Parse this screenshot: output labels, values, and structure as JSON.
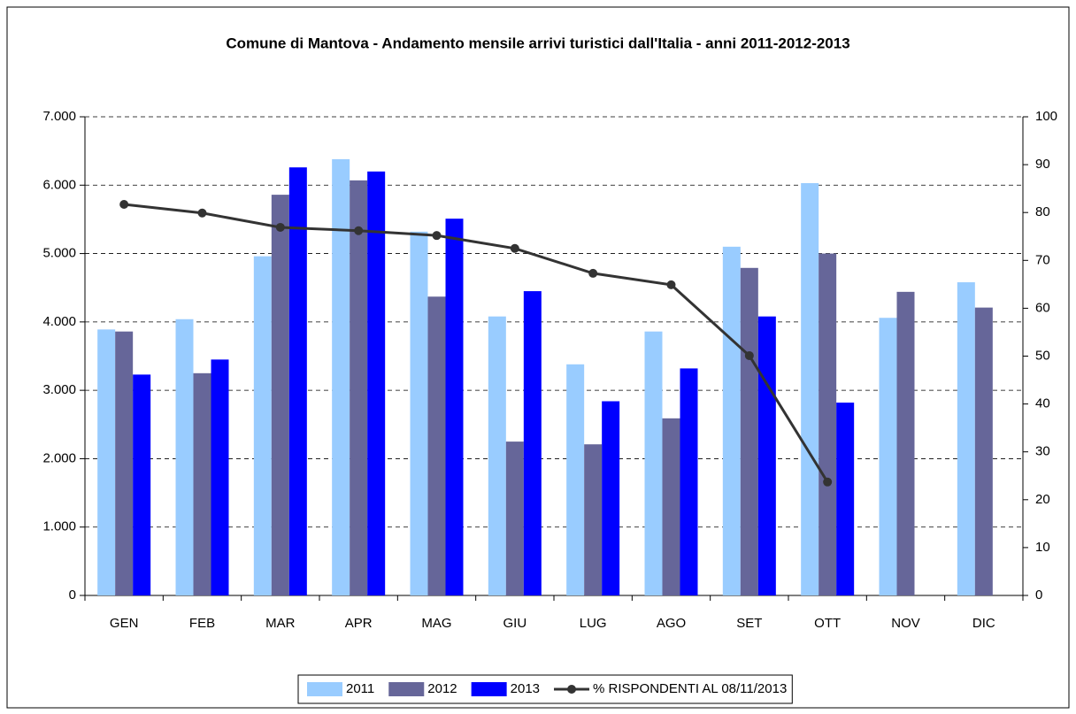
{
  "chart_data": {
    "type": "bar",
    "title": "Comune di Mantova - Andamento mensile arrivi turistici dall'Italia - anni 2011-2012-2013",
    "categories": [
      "GEN",
      "FEB",
      "MAR",
      "APR",
      "MAG",
      "GIU",
      "LUG",
      "AGO",
      "SET",
      "OTT",
      "NOV",
      "DIC"
    ],
    "series": [
      {
        "name": "2011",
        "color": "#99ccff",
        "values": [
          3890,
          4040,
          4960,
          6380,
          5320,
          4080,
          3380,
          3860,
          5100,
          6030,
          4060,
          4580
        ]
      },
      {
        "name": "2012",
        "color": "#666699",
        "values": [
          3860,
          3250,
          5860,
          6070,
          4370,
          2250,
          2210,
          2590,
          4790,
          5000,
          4440,
          4210
        ]
      },
      {
        "name": "2013",
        "color": "#0000ff",
        "values": [
          3230,
          3450,
          6260,
          6200,
          5510,
          4450,
          2840,
          3320,
          4080,
          2820,
          null,
          null
        ]
      },
      {
        "name": "% RISPONDENTI AL 08/11/2013",
        "color": "#333333",
        "type": "line",
        "axis": "y2",
        "values": [
          81.7,
          79.9,
          76.9,
          76.2,
          75.2,
          72.5,
          67.3,
          64.9,
          50.1,
          23.7,
          null,
          null
        ]
      }
    ],
    "ylim": [
      0,
      7000
    ],
    "yticks": [
      0,
      {
        "value": 1000,
        "label": "1.000"
      },
      {
        "value": 2000,
        "label": "2.000"
      },
      {
        "value": 3000,
        "label": "3.000"
      },
      {
        "value": 4000,
        "label": "4.000"
      },
      {
        "value": 5000,
        "label": "5.000"
      },
      {
        "value": 6000,
        "label": "6.000"
      },
      {
        "value": 7000,
        "label": "7.000"
      }
    ],
    "y2lim": [
      0,
      100
    ],
    "y2ticks": [
      0,
      10,
      20,
      30,
      40,
      50,
      60,
      70,
      80,
      90,
      100
    ],
    "grid": true,
    "legend": "bottom"
  }
}
